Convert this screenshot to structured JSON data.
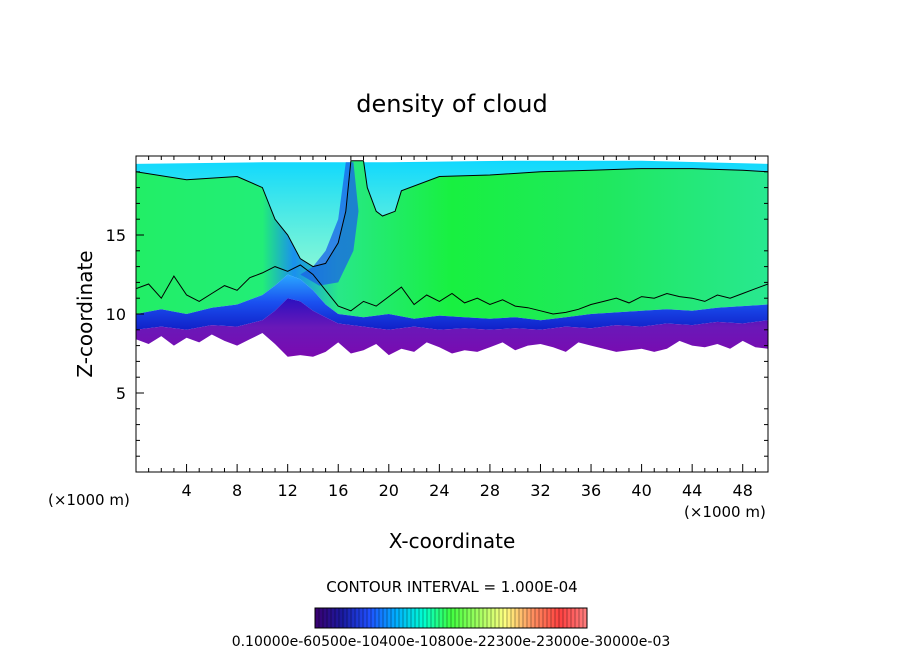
{
  "chart_data": {
    "type": "heatmap",
    "title": "density of cloud",
    "xlabel": "X-coordinate",
    "ylabel": "Z-coordinate",
    "x_unit": "(×1000 m)",
    "y_unit": "(×1000 m)",
    "xlim": [
      0,
      50
    ],
    "ylim": [
      0,
      20
    ],
    "x_ticks": [
      4,
      8,
      12,
      16,
      20,
      24,
      28,
      32,
      36,
      40,
      44,
      48
    ],
    "y_ticks": [
      5,
      10,
      15
    ],
    "contour_interval_text": "CONTOUR INTERVAL = 1.000E-04",
    "colorbar_labels_text": "0.10000e-60500e-10400e-10800e-22300e-23000e-30000e-03",
    "colors": {
      "high": "#00ff00",
      "mid": "#00e5ff",
      "low": "#1010d0",
      "lowest": "#7a0ab0"
    },
    "colorbar_colors": [
      "#3a0070",
      "#1a1aa0",
      "#2050ff",
      "#00b0ff",
      "#00ffd0",
      "#40ff40",
      "#a0ff60",
      "#ffff80",
      "#ff9060",
      "#ff4040",
      "#ff8080"
    ],
    "cloud_top": [
      [
        0,
        19.5
      ],
      [
        10,
        19.6
      ],
      [
        20,
        19.6
      ],
      [
        30,
        19.7
      ],
      [
        40,
        19.7
      ],
      [
        50,
        19.5
      ]
    ],
    "contour_top": [
      [
        0,
        19.0
      ],
      [
        4,
        18.5
      ],
      [
        8,
        18.7
      ],
      [
        10,
        18.0
      ],
      [
        11,
        16.0
      ],
      [
        12,
        15.0
      ],
      [
        13,
        13.5
      ],
      [
        14,
        13.0
      ],
      [
        15,
        13.2
      ],
      [
        16,
        14.5
      ],
      [
        16.6,
        16.5
      ],
      [
        17,
        19.7
      ],
      [
        18,
        19.7
      ],
      [
        18.3,
        18.0
      ],
      [
        19,
        16.5
      ],
      [
        19.5,
        16.2
      ],
      [
        20.5,
        16.5
      ],
      [
        21,
        17.8
      ],
      [
        24,
        18.7
      ],
      [
        28,
        18.8
      ],
      [
        32,
        19.0
      ],
      [
        36,
        19.1
      ],
      [
        40,
        19.2
      ],
      [
        44,
        19.2
      ],
      [
        48,
        19.1
      ],
      [
        50,
        19.0
      ]
    ],
    "cloud_base": [
      [
        0,
        8.4
      ],
      [
        1,
        8.1
      ],
      [
        2,
        8.6
      ],
      [
        3,
        8.0
      ],
      [
        4,
        8.5
      ],
      [
        5,
        8.2
      ],
      [
        6,
        8.7
      ],
      [
        7,
        8.3
      ],
      [
        8,
        8.0
      ],
      [
        9,
        8.4
      ],
      [
        10,
        8.8
      ],
      [
        11,
        8.1
      ],
      [
        12,
        7.3
      ],
      [
        13,
        7.4
      ],
      [
        14,
        7.3
      ],
      [
        15,
        7.6
      ],
      [
        16,
        8.2
      ],
      [
        17,
        7.5
      ],
      [
        18,
        7.7
      ],
      [
        19,
        8.1
      ],
      [
        20,
        7.4
      ],
      [
        21,
        7.8
      ],
      [
        22,
        7.6
      ],
      [
        23,
        8.2
      ],
      [
        24,
        7.9
      ],
      [
        25,
        7.5
      ],
      [
        26,
        7.7
      ],
      [
        27,
        7.6
      ],
      [
        28,
        7.9
      ],
      [
        29,
        8.2
      ],
      [
        30,
        7.7
      ],
      [
        31,
        8.0
      ],
      [
        32,
        8.1
      ],
      [
        33,
        7.9
      ],
      [
        34,
        7.6
      ],
      [
        35,
        8.2
      ],
      [
        36,
        8.0
      ],
      [
        37,
        7.8
      ],
      [
        38,
        7.6
      ],
      [
        39,
        7.7
      ],
      [
        40,
        7.8
      ],
      [
        41,
        7.6
      ],
      [
        42,
        7.8
      ],
      [
        43,
        8.3
      ],
      [
        44,
        8.0
      ],
      [
        45,
        7.9
      ],
      [
        46,
        8.1
      ],
      [
        47,
        7.8
      ],
      [
        48,
        8.3
      ],
      [
        49,
        7.9
      ],
      [
        50,
        7.8
      ]
    ],
    "violet_top": [
      [
        0,
        9.0
      ],
      [
        2,
        9.2
      ],
      [
        4,
        9.0
      ],
      [
        6,
        9.3
      ],
      [
        8,
        9.2
      ],
      [
        10,
        9.6
      ],
      [
        11,
        10.2
      ],
      [
        12,
        11.0
      ],
      [
        13,
        10.8
      ],
      [
        14,
        10.2
      ],
      [
        15,
        9.8
      ],
      [
        16,
        9.4
      ],
      [
        18,
        9.2
      ],
      [
        20,
        9.0
      ],
      [
        22,
        9.2
      ],
      [
        24,
        9.0
      ],
      [
        26,
        9.1
      ],
      [
        28,
        9.0
      ],
      [
        30,
        9.1
      ],
      [
        32,
        9.0
      ],
      [
        34,
        9.2
      ],
      [
        36,
        9.1
      ],
      [
        38,
        9.3
      ],
      [
        40,
        9.2
      ],
      [
        42,
        9.4
      ],
      [
        44,
        9.3
      ],
      [
        46,
        9.5
      ],
      [
        48,
        9.4
      ],
      [
        50,
        9.6
      ]
    ],
    "blue_top": [
      [
        0,
        10.0
      ],
      [
        2,
        10.3
      ],
      [
        4,
        10.0
      ],
      [
        6,
        10.4
      ],
      [
        8,
        10.6
      ],
      [
        10,
        11.2
      ],
      [
        11,
        11.8
      ],
      [
        12,
        12.5
      ],
      [
        13,
        12.2
      ],
      [
        14,
        11.5
      ],
      [
        15,
        10.6
      ],
      [
        16,
        10.0
      ],
      [
        18,
        9.8
      ],
      [
        20,
        10.0
      ],
      [
        22,
        9.7
      ],
      [
        24,
        9.9
      ],
      [
        26,
        9.8
      ],
      [
        28,
        9.7
      ],
      [
        30,
        9.8
      ],
      [
        32,
        9.6
      ],
      [
        34,
        9.8
      ],
      [
        36,
        10.0
      ],
      [
        38,
        10.1
      ],
      [
        40,
        10.2
      ],
      [
        42,
        10.3
      ],
      [
        44,
        10.2
      ],
      [
        46,
        10.4
      ],
      [
        48,
        10.5
      ],
      [
        50,
        10.6
      ]
    ],
    "contour_base": [
      [
        0,
        11.6
      ],
      [
        1,
        11.9
      ],
      [
        2,
        11.0
      ],
      [
        3,
        12.4
      ],
      [
        4,
        11.2
      ],
      [
        5,
        10.8
      ],
      [
        6,
        11.3
      ],
      [
        7,
        11.8
      ],
      [
        8,
        11.5
      ],
      [
        9,
        12.3
      ],
      [
        10,
        12.6
      ],
      [
        11,
        13.0
      ],
      [
        12,
        12.7
      ],
      [
        13,
        13.1
      ],
      [
        14,
        12.5
      ],
      [
        15,
        11.5
      ],
      [
        16,
        10.5
      ],
      [
        17,
        10.2
      ],
      [
        18,
        10.8
      ],
      [
        19,
        10.5
      ],
      [
        20,
        11.1
      ],
      [
        21,
        11.7
      ],
      [
        22,
        10.6
      ],
      [
        23,
        11.2
      ],
      [
        24,
        10.8
      ],
      [
        25,
        11.3
      ],
      [
        26,
        10.7
      ],
      [
        27,
        11.0
      ],
      [
        28,
        10.6
      ],
      [
        29,
        10.9
      ],
      [
        30,
        10.5
      ],
      [
        31,
        10.4
      ],
      [
        32,
        10.2
      ],
      [
        33,
        10.0
      ],
      [
        34,
        10.1
      ],
      [
        35,
        10.3
      ],
      [
        36,
        10.6
      ],
      [
        37,
        10.8
      ],
      [
        38,
        11.0
      ],
      [
        39,
        10.7
      ],
      [
        40,
        11.1
      ],
      [
        41,
        11.0
      ],
      [
        42,
        11.3
      ],
      [
        43,
        11.1
      ],
      [
        44,
        11.0
      ],
      [
        45,
        10.8
      ],
      [
        46,
        11.2
      ],
      [
        47,
        11.0
      ],
      [
        48,
        11.3
      ],
      [
        49,
        11.6
      ],
      [
        50,
        11.9
      ]
    ]
  }
}
